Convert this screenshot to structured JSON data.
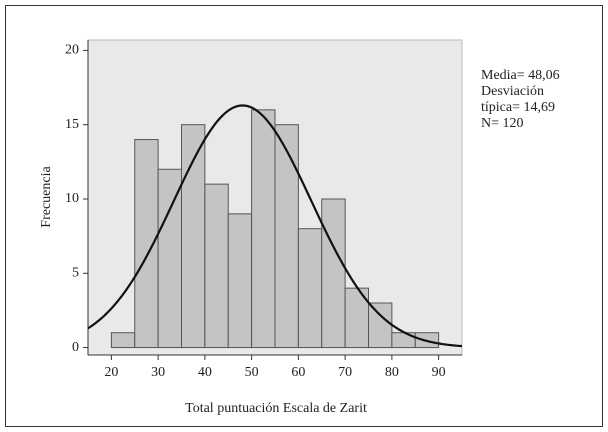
{
  "chart_data": {
    "type": "histogram",
    "x_label": "Total puntuación Escala de Zarit",
    "y_label": "Frecuencia",
    "bins": [
      20,
      25,
      30,
      35,
      40,
      45,
      50,
      55,
      60,
      65,
      70,
      75,
      80,
      85,
      90
    ],
    "values": [
      1,
      14,
      12,
      15,
      11,
      9,
      16,
      15,
      8,
      10,
      4,
      3,
      1,
      1
    ],
    "color": "#c4c4c4",
    "xlim": [
      15,
      95
    ],
    "xticks": [
      20,
      30,
      40,
      50,
      60,
      70,
      80,
      90
    ],
    "ylim": [
      -0.5,
      20.7
    ],
    "yticks": [
      0,
      5,
      10,
      15,
      20
    ],
    "normal_curve": {
      "mean": 48.06,
      "sd": 14.69,
      "n": 120
    },
    "stats": [
      "Media= 48,06",
      "Desviación típica= 14,69",
      "N= 120"
    ]
  }
}
